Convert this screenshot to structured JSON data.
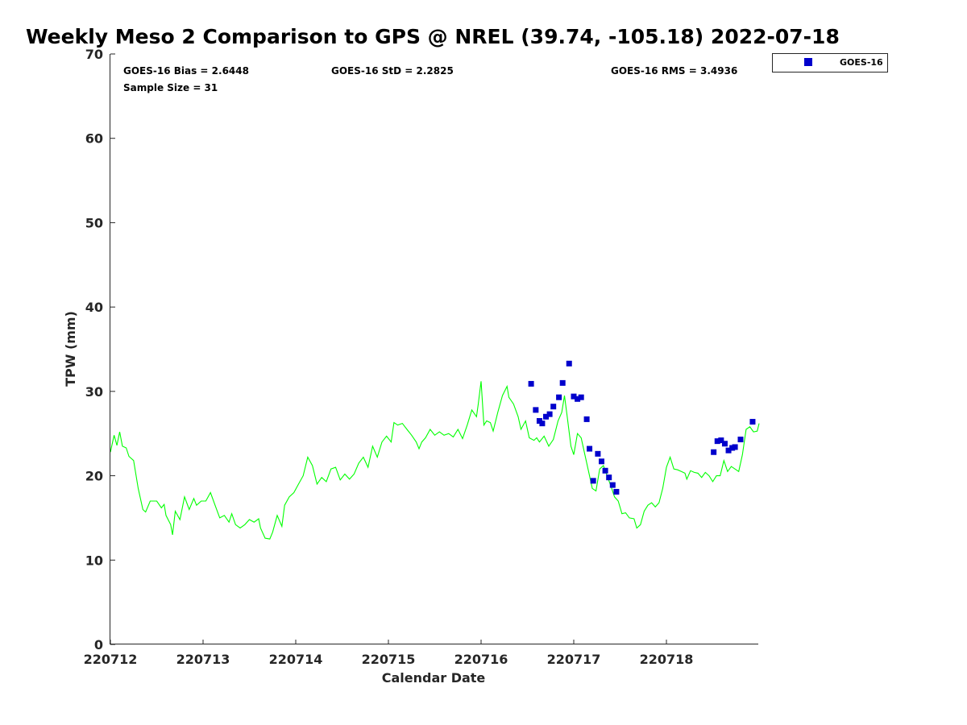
{
  "chart_data": {
    "type": "scatter",
    "title": "Weekly Meso 2 Comparison to GPS @ NREL (39.74, -105.18) 2022-07-18",
    "xlabel": "Calendar Date",
    "ylabel": "TPW (mm)",
    "ylim": [
      0,
      70
    ],
    "xlim": [
      0,
      7
    ],
    "yticks": [
      0,
      10,
      20,
      30,
      40,
      50,
      60,
      70
    ],
    "xticks": [
      {
        "value": 0,
        "label": "220712"
      },
      {
        "value": 1,
        "label": "220713"
      },
      {
        "value": 2,
        "label": "220714"
      },
      {
        "value": 3,
        "label": "220715"
      },
      {
        "value": 4,
        "label": "220716"
      },
      {
        "value": 5,
        "label": "220717"
      },
      {
        "value": 6,
        "label": "220718"
      }
    ],
    "grid": false,
    "legend_position": "top-right",
    "stats": {
      "bias": "GOES-16 Bias = 2.6448",
      "std": "GOES-16 StD = 2.2825",
      "rms": "GOES-16 RMS = 3.4936",
      "sample": "Sample Size = 31"
    },
    "series": [
      {
        "name": "",
        "kind": "line",
        "color": "#00ff00",
        "points": [
          [
            0.0,
            22.8
          ],
          [
            0.04,
            24.8
          ],
          [
            0.07,
            23.6
          ],
          [
            0.1,
            25.2
          ],
          [
            0.13,
            23.5
          ],
          [
            0.17,
            23.3
          ],
          [
            0.2,
            22.3
          ],
          [
            0.25,
            21.8
          ],
          [
            0.3,
            18.5
          ],
          [
            0.35,
            16.0
          ],
          [
            0.38,
            15.7
          ],
          [
            0.43,
            17.0
          ],
          [
            0.5,
            17.0
          ],
          [
            0.55,
            16.2
          ],
          [
            0.58,
            16.6
          ],
          [
            0.6,
            15.3
          ],
          [
            0.65,
            14.2
          ],
          [
            0.67,
            13.0
          ],
          [
            0.7,
            15.8
          ],
          [
            0.75,
            14.8
          ],
          [
            0.8,
            17.5
          ],
          [
            0.85,
            16.0
          ],
          [
            0.9,
            17.3
          ],
          [
            0.93,
            16.5
          ],
          [
            0.98,
            17.0
          ],
          [
            1.03,
            17.0
          ],
          [
            1.08,
            18.0
          ],
          [
            1.13,
            16.5
          ],
          [
            1.18,
            15.0
          ],
          [
            1.23,
            15.3
          ],
          [
            1.28,
            14.5
          ],
          [
            1.31,
            15.5
          ],
          [
            1.35,
            14.2
          ],
          [
            1.4,
            13.8
          ],
          [
            1.45,
            14.2
          ],
          [
            1.5,
            14.8
          ],
          [
            1.55,
            14.5
          ],
          [
            1.6,
            14.9
          ],
          [
            1.62,
            13.8
          ],
          [
            1.67,
            12.6
          ],
          [
            1.72,
            12.5
          ],
          [
            1.75,
            13.3
          ],
          [
            1.8,
            15.3
          ],
          [
            1.85,
            14.0
          ],
          [
            1.88,
            16.5
          ],
          [
            1.93,
            17.5
          ],
          [
            1.98,
            18.0
          ],
          [
            2.03,
            19.0
          ],
          [
            2.08,
            20.0
          ],
          [
            2.13,
            22.2
          ],
          [
            2.18,
            21.2
          ],
          [
            2.23,
            19.0
          ],
          [
            2.28,
            19.8
          ],
          [
            2.33,
            19.3
          ],
          [
            2.38,
            20.8
          ],
          [
            2.43,
            21.0
          ],
          [
            2.48,
            19.5
          ],
          [
            2.53,
            20.2
          ],
          [
            2.58,
            19.6
          ],
          [
            2.63,
            20.2
          ],
          [
            2.68,
            21.5
          ],
          [
            2.73,
            22.2
          ],
          [
            2.78,
            21.0
          ],
          [
            2.83,
            23.5
          ],
          [
            2.88,
            22.2
          ],
          [
            2.93,
            24.0
          ],
          [
            2.98,
            24.7
          ],
          [
            3.03,
            24.0
          ],
          [
            3.06,
            26.3
          ],
          [
            3.1,
            26.0
          ],
          [
            3.15,
            26.2
          ],
          [
            3.2,
            25.5
          ],
          [
            3.25,
            24.8
          ],
          [
            3.3,
            24.0
          ],
          [
            3.33,
            23.2
          ],
          [
            3.36,
            24.0
          ],
          [
            3.4,
            24.5
          ],
          [
            3.45,
            25.5
          ],
          [
            3.5,
            24.8
          ],
          [
            3.55,
            25.2
          ],
          [
            3.6,
            24.8
          ],
          [
            3.65,
            25.0
          ],
          [
            3.7,
            24.6
          ],
          [
            3.75,
            25.5
          ],
          [
            3.8,
            24.4
          ],
          [
            3.85,
            26.0
          ],
          [
            3.9,
            27.8
          ],
          [
            3.95,
            27.0
          ],
          [
            3.97,
            28.5
          ],
          [
            4.0,
            31.2
          ],
          [
            4.03,
            26.0
          ],
          [
            4.06,
            26.5
          ],
          [
            4.1,
            26.3
          ],
          [
            4.13,
            25.3
          ],
          [
            4.18,
            27.5
          ],
          [
            4.23,
            29.5
          ],
          [
            4.28,
            30.6
          ],
          [
            4.3,
            29.3
          ],
          [
            4.35,
            28.5
          ],
          [
            4.4,
            27.0
          ],
          [
            4.43,
            25.5
          ],
          [
            4.48,
            26.5
          ],
          [
            4.52,
            24.5
          ],
          [
            4.57,
            24.2
          ],
          [
            4.6,
            24.5
          ],
          [
            4.63,
            24.0
          ],
          [
            4.68,
            24.7
          ],
          [
            4.73,
            23.5
          ],
          [
            4.78,
            24.3
          ],
          [
            4.83,
            26.5
          ],
          [
            4.87,
            27.5
          ],
          [
            4.9,
            29.5
          ],
          [
            4.93,
            27.0
          ],
          [
            4.97,
            23.5
          ],
          [
            5.0,
            22.5
          ],
          [
            5.04,
            25.0
          ],
          [
            5.08,
            24.5
          ],
          [
            5.12,
            22.5
          ],
          [
            5.16,
            20.5
          ],
          [
            5.2,
            18.5
          ],
          [
            5.24,
            18.2
          ],
          [
            5.28,
            20.8
          ],
          [
            5.32,
            21.2
          ],
          [
            5.36,
            20.0
          ],
          [
            5.4,
            18.8
          ],
          [
            5.44,
            17.5
          ],
          [
            5.48,
            17.0
          ],
          [
            5.52,
            15.5
          ],
          [
            5.56,
            15.6
          ],
          [
            5.6,
            15.0
          ],
          [
            5.65,
            14.9
          ],
          [
            5.68,
            13.8
          ],
          [
            5.72,
            14.2
          ],
          [
            5.76,
            15.8
          ],
          [
            5.8,
            16.5
          ],
          [
            5.84,
            16.8
          ],
          [
            5.88,
            16.3
          ],
          [
            5.92,
            16.8
          ],
          [
            5.96,
            18.5
          ],
          [
            6.0,
            21.0
          ],
          [
            6.04,
            22.2
          ],
          [
            6.08,
            20.8
          ],
          [
            6.12,
            20.7
          ],
          [
            6.16,
            20.5
          ],
          [
            6.2,
            20.3
          ],
          [
            6.22,
            19.6
          ],
          [
            6.26,
            20.6
          ],
          [
            6.3,
            20.4
          ],
          [
            6.34,
            20.3
          ],
          [
            6.38,
            19.8
          ],
          [
            6.42,
            20.4
          ],
          [
            6.46,
            20.0
          ],
          [
            6.5,
            19.3
          ],
          [
            6.54,
            20.0
          ],
          [
            6.58,
            20.0
          ],
          [
            6.62,
            21.8
          ],
          [
            6.66,
            20.5
          ],
          [
            6.7,
            21.1
          ],
          [
            6.74,
            20.8
          ],
          [
            6.78,
            20.5
          ],
          [
            6.82,
            22.5
          ],
          [
            6.86,
            25.5
          ],
          [
            6.9,
            25.8
          ],
          [
            6.94,
            25.2
          ],
          [
            6.98,
            25.3
          ],
          [
            7.0,
            26.2
          ]
        ]
      },
      {
        "name": "GOES-16",
        "kind": "scatter",
        "color": "#0000cc",
        "points": [
          [
            4.54,
            30.9
          ],
          [
            4.59,
            27.8
          ],
          [
            4.63,
            26.5
          ],
          [
            4.66,
            26.2
          ],
          [
            4.7,
            27.0
          ],
          [
            4.74,
            27.3
          ],
          [
            4.78,
            28.2
          ],
          [
            4.84,
            29.3
          ],
          [
            4.88,
            31.0
          ],
          [
            4.95,
            33.3
          ],
          [
            5.0,
            29.4
          ],
          [
            5.04,
            29.1
          ],
          [
            5.08,
            29.3
          ],
          [
            5.14,
            26.7
          ],
          [
            5.17,
            23.2
          ],
          [
            5.21,
            19.4
          ],
          [
            5.26,
            22.6
          ],
          [
            5.3,
            21.7
          ],
          [
            5.34,
            20.6
          ],
          [
            5.38,
            19.8
          ],
          [
            5.42,
            18.9
          ],
          [
            5.46,
            18.1
          ],
          [
            6.51,
            22.8
          ],
          [
            6.55,
            24.1
          ],
          [
            6.59,
            24.2
          ],
          [
            6.63,
            23.8
          ],
          [
            6.67,
            23.0
          ],
          [
            6.71,
            23.3
          ],
          [
            6.74,
            23.4
          ],
          [
            6.8,
            24.3
          ],
          [
            6.93,
            26.4
          ]
        ]
      }
    ]
  }
}
